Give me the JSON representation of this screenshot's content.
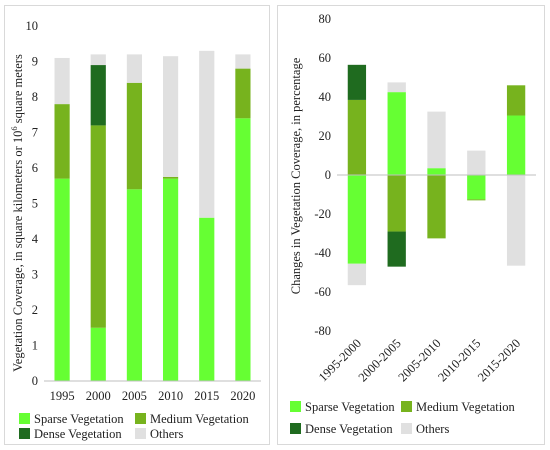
{
  "chart_data": [
    {
      "type": "bar",
      "stacked": true,
      "categories": [
        "1995",
        "2000",
        "2005",
        "2010",
        "2015",
        "2020"
      ],
      "series": [
        {
          "name": "Sparse Vegetation",
          "color": "#66ff33",
          "values": [
            5.7,
            1.5,
            5.4,
            5.7,
            4.6,
            7.4
          ]
        },
        {
          "name": "Medium Vegetation",
          "color": "#77b31e",
          "values": [
            2.1,
            5.7,
            3.0,
            0.05,
            0.0,
            1.4
          ]
        },
        {
          "name": "Dense Vegetation",
          "color": "#1f6b1f",
          "values": [
            0.0,
            1.7,
            0.0,
            0.0,
            0.0,
            0.0
          ]
        },
        {
          "name": "Others",
          "color": "#e0e0e0",
          "values": [
            1.3,
            0.3,
            0.8,
            3.4,
            4.7,
            0.4
          ]
        }
      ],
      "title": "",
      "xlabel": "",
      "ylabel": "Vegetation Coverage, in square kilometers or 10",
      "ylabel_sup": "6",
      "ylabel_tail": " square meters",
      "ylim": [
        0,
        10
      ],
      "yticks": [
        "0",
        "1",
        "2",
        "3",
        "4",
        "5",
        "6",
        "7",
        "8",
        "9",
        "10"
      ],
      "grid": false,
      "legend": "bottom"
    },
    {
      "type": "bar",
      "stacked": true,
      "categories": [
        "1995-2000",
        "2000-2005",
        "2005-2010",
        "2010-2015",
        "2015-2020"
      ],
      "series": [
        {
          "name": "Sparse Vegetation",
          "color": "#66ff33",
          "values": [
            -45.5,
            42.5,
            3.5,
            -12.5,
            30.5
          ]
        },
        {
          "name": "Medium Vegetation",
          "color": "#77b31e",
          "values": [
            38.5,
            -29.0,
            -32.5,
            -0.5,
            15.5
          ]
        },
        {
          "name": "Dense Vegetation",
          "color": "#1f6b1f",
          "values": [
            18.0,
            -18.0,
            0.0,
            0.0,
            0.0
          ]
        },
        {
          "name": "Others",
          "color": "#e0e0e0",
          "values": [
            -11.0,
            5.0,
            29.0,
            12.5,
            -46.5
          ]
        }
      ],
      "title": "",
      "xlabel": "",
      "ylabel": "Changes in Vegetation Coverage, in percentage",
      "ylim": [
        -80,
        80
      ],
      "yticks": [
        "-80",
        "-60",
        "-40",
        "-20",
        "0",
        "20",
        "40",
        "60",
        "80"
      ],
      "grid": false,
      "legend": "bottom"
    }
  ]
}
